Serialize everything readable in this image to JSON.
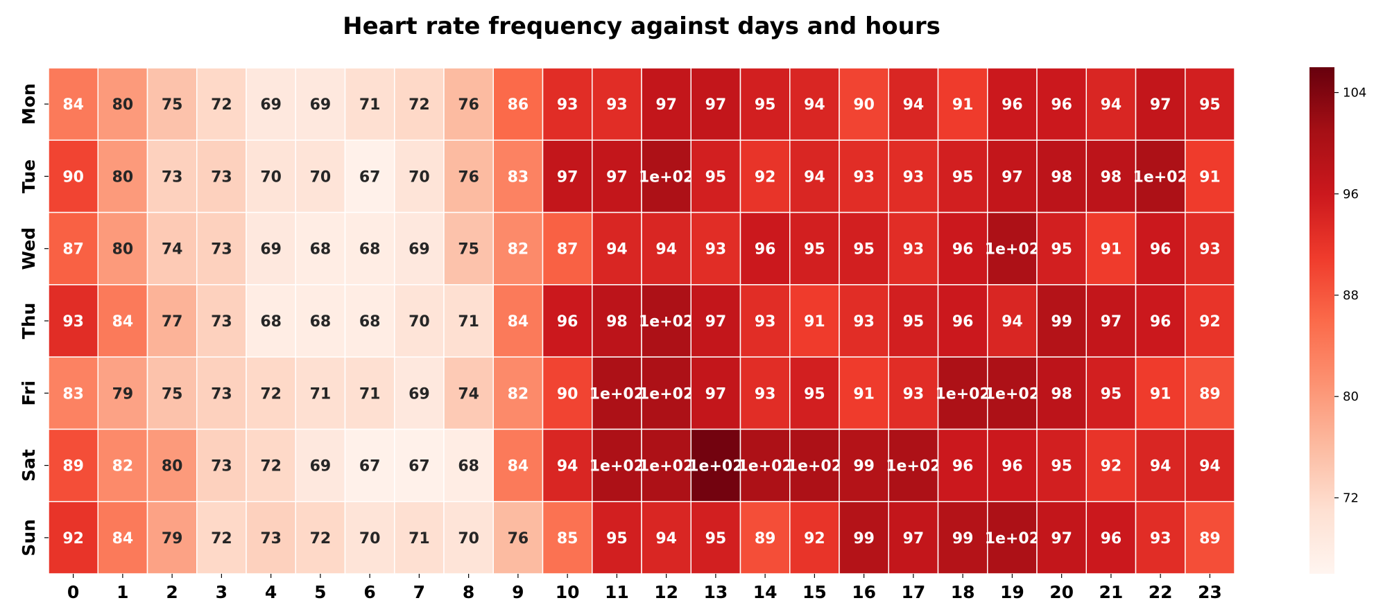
{
  "chart_data": {
    "type": "heatmap",
    "title": "Heart rate frequency against days and hours",
    "xlabel": "",
    "ylabel": "",
    "x_categories": [
      "0",
      "1",
      "2",
      "3",
      "4",
      "5",
      "6",
      "7",
      "8",
      "9",
      "10",
      "11",
      "12",
      "13",
      "14",
      "15",
      "16",
      "17",
      "18",
      "19",
      "20",
      "21",
      "22",
      "23"
    ],
    "y_categories": [
      "Mon",
      "Tue",
      "Wed",
      "Thu",
      "Fri",
      "Sat",
      "Sun"
    ],
    "values": [
      [
        84,
        80,
        75,
        72,
        69,
        69,
        71,
        72,
        76,
        86,
        93,
        93,
        97,
        97,
        95,
        94,
        90,
        94,
        91,
        96,
        96,
        94,
        97,
        95
      ],
      [
        90,
        80,
        73,
        73,
        70,
        70,
        67,
        70,
        76,
        83,
        97,
        97,
        100,
        95,
        92,
        94,
        93,
        93,
        95,
        97,
        98,
        98,
        100,
        91
      ],
      [
        87,
        80,
        74,
        73,
        69,
        68,
        68,
        69,
        75,
        82,
        87,
        94,
        94,
        93,
        96,
        95,
        95,
        93,
        96,
        100,
        95,
        91,
        96,
        93
      ],
      [
        93,
        84,
        77,
        73,
        68,
        68,
        68,
        70,
        71,
        84,
        96,
        98,
        100,
        97,
        93,
        91,
        93,
        95,
        96,
        94,
        99,
        97,
        96,
        92
      ],
      [
        83,
        79,
        75,
        73,
        72,
        71,
        71,
        69,
        74,
        82,
        90,
        100,
        100,
        97,
        93,
        95,
        91,
        93,
        100,
        100,
        98,
        95,
        91,
        89
      ],
      [
        89,
        82,
        80,
        73,
        72,
        69,
        67,
        67,
        68,
        84,
        94,
        100,
        100,
        105,
        100,
        100,
        99,
        100,
        96,
        96,
        95,
        92,
        94,
        94
      ],
      [
        92,
        84,
        79,
        72,
        73,
        72,
        70,
        71,
        70,
        76,
        85,
        95,
        94,
        95,
        89,
        92,
        99,
        97,
        99,
        100,
        97,
        96,
        93,
        89
      ]
    ],
    "labels": [
      [
        "84",
        "80",
        "75",
        "72",
        "69",
        "69",
        "71",
        "72",
        "76",
        "86",
        "93",
        "93",
        "97",
        "97",
        "95",
        "94",
        "90",
        "94",
        "91",
        "96",
        "96",
        "94",
        "97",
        "95"
      ],
      [
        "90",
        "80",
        "73",
        "73",
        "70",
        "70",
        "67",
        "70",
        "76",
        "83",
        "97",
        "97",
        "1e+02",
        "95",
        "92",
        "94",
        "93",
        "93",
        "95",
        "97",
        "98",
        "98",
        "1e+02",
        "91"
      ],
      [
        "87",
        "80",
        "74",
        "73",
        "69",
        "68",
        "68",
        "69",
        "75",
        "82",
        "87",
        "94",
        "94",
        "93",
        "96",
        "95",
        "95",
        "93",
        "96",
        "1e+02",
        "95",
        "91",
        "96",
        "93"
      ],
      [
        "93",
        "84",
        "77",
        "73",
        "68",
        "68",
        "68",
        "70",
        "71",
        "84",
        "96",
        "98",
        "1e+02",
        "97",
        "93",
        "91",
        "93",
        "95",
        "96",
        "94",
        "99",
        "97",
        "96",
        "92"
      ],
      [
        "83",
        "79",
        "75",
        "73",
        "72",
        "71",
        "71",
        "69",
        "74",
        "82",
        "90",
        "1e+02",
        "1e+02",
        "97",
        "93",
        "95",
        "91",
        "93",
        "1e+02",
        "1e+02",
        "98",
        "95",
        "91",
        "89"
      ],
      [
        "89",
        "82",
        "80",
        "73",
        "72",
        "69",
        "67",
        "67",
        "68",
        "84",
        "94",
        "1e+02",
        "1e+02",
        "1e+02",
        "1e+02",
        "1e+02",
        "99",
        "1e+02",
        "96",
        "96",
        "95",
        "92",
        "94",
        "94"
      ],
      [
        "92",
        "84",
        "79",
        "72",
        "73",
        "72",
        "70",
        "71",
        "70",
        "76",
        "85",
        "95",
        "94",
        "95",
        "89",
        "92",
        "99",
        "97",
        "99",
        "1e+02",
        "97",
        "96",
        "93",
        "89"
      ]
    ],
    "colorbar": {
      "min": 66,
      "max": 106,
      "ticks": [
        72,
        80,
        88,
        96,
        104
      ],
      "colormap": "Reds"
    },
    "grid": true,
    "legend": "colorbar-right"
  },
  "colors": {
    "background": "#ffffff",
    "cell_border": "#ffffff",
    "dark_text": "#262626",
    "light_text": "#ffffff"
  }
}
